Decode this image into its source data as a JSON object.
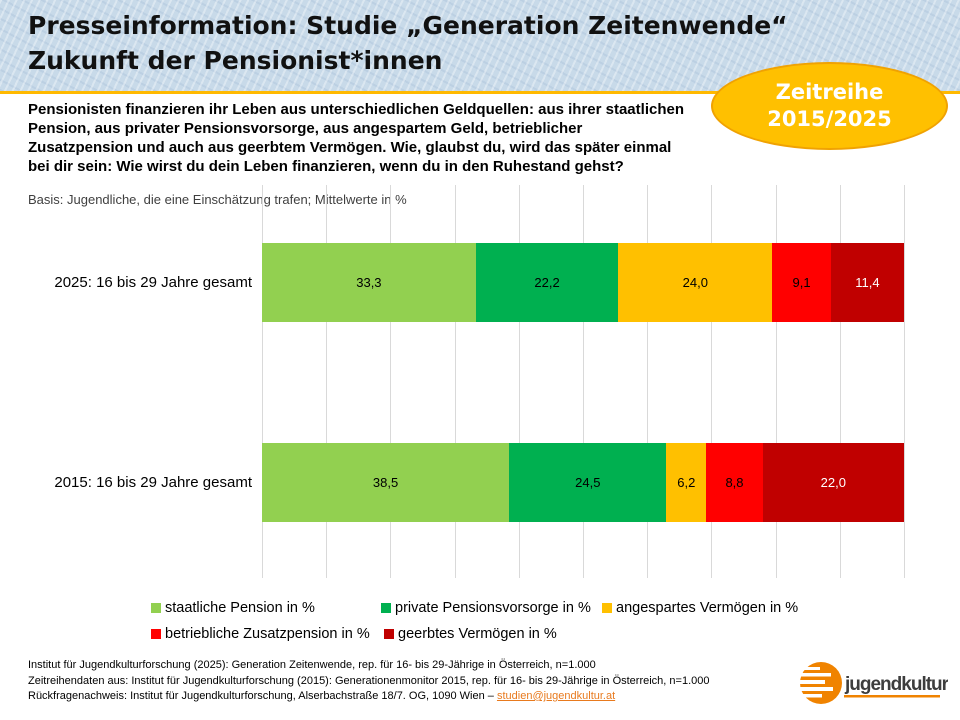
{
  "slide": {
    "title_line1": "Presseinformation: Studie „Generation Zeitenwende“",
    "title_line2": "Zukunft der Pensionist*innen",
    "badge": {
      "line1": "Zeitreihe",
      "line2": "2015/2025"
    },
    "intro": "Pensionisten finanzieren ihr Leben aus unterschiedlichen Geldquellen: aus ihrer staatlichen Pension, aus privater Pensionsvorsorge, aus angespartem Geld, betrieblicher Zusatzpension und auch aus geerbtem Vermögen. Wie, glaubst du, wird das später einmal bei dir sein: Wie wirst du dein Leben finanzieren, wenn du in den Ruhestand gehst?",
    "basis": "Basis: Jugendliche, die eine Einschätzung trafen; Mittelwerte in %"
  },
  "chart_data": {
    "type": "bar",
    "orientation": "horizontal_stacked",
    "categories": [
      "2025: 16 bis 29 Jahre gesamt",
      "2015: 16 bis 29 Jahre gesamt"
    ],
    "series": [
      {
        "name": "staatliche Pension in %",
        "color": "#92D050",
        "label_color": "#000000",
        "values": [
          33.3,
          38.5
        ]
      },
      {
        "name": "private Pensionsvorsorge in %",
        "color": "#00B050",
        "label_color": "#000000",
        "values": [
          22.2,
          24.5
        ]
      },
      {
        "name": "angespartes Vermögen in %",
        "color": "#FFC000",
        "label_color": "#000000",
        "values": [
          24.0,
          6.2
        ]
      },
      {
        "name": "betriebliche Zusatzpension in %",
        "color": "#FF0000",
        "label_color": "#000000",
        "values": [
          9.1,
          8.8
        ]
      },
      {
        "name": "geerbtes Vermögen in %",
        "color": "#C00000",
        "label_color": "#FFFFFF",
        "values": [
          11.4,
          22.0
        ]
      }
    ],
    "value_labels": [
      [
        "33,3",
        "22,2",
        "24,0",
        "9,1",
        "11,4"
      ],
      [
        "38,5",
        "24,5",
        "6,2",
        "8,8",
        "22,0"
      ]
    ],
    "xlim": [
      0,
      100
    ],
    "gridline_interval_percent": 10,
    "grid": true,
    "legend_position": "bottom"
  },
  "footer": {
    "line1": "Institut für Jugendkulturforschung (2025): Generation Zeitenwende, rep. für 16- bis 29-Jährige in Österreich, n=1.000",
    "line2": "Zeitreihendaten aus: Institut für Jugendkulturforschung (2015): Generationenmonitor 2015, rep. für 16- bis 29-Jährige in Österreich, n=1.000",
    "line3_prefix": "Rückfragenachweis: Institut für Jugendkulturforschung, Alserbachstraße 18/7. OG, 1090 Wien – ",
    "email": "studien@jugendkultur.at"
  },
  "logo": {
    "text": "jugendkultur.at"
  },
  "colors": {
    "header_bg": "#C8DAE9",
    "rule": "#FFB900",
    "badge_fill": "#FFC000",
    "badge_border": "#F0A202",
    "badge_text": "#FFFFFF",
    "gridline": "#D9D9D9",
    "link": "#E87A1E",
    "logo_orange": "#F08300",
    "logo_text": "#3D3D3D"
  }
}
